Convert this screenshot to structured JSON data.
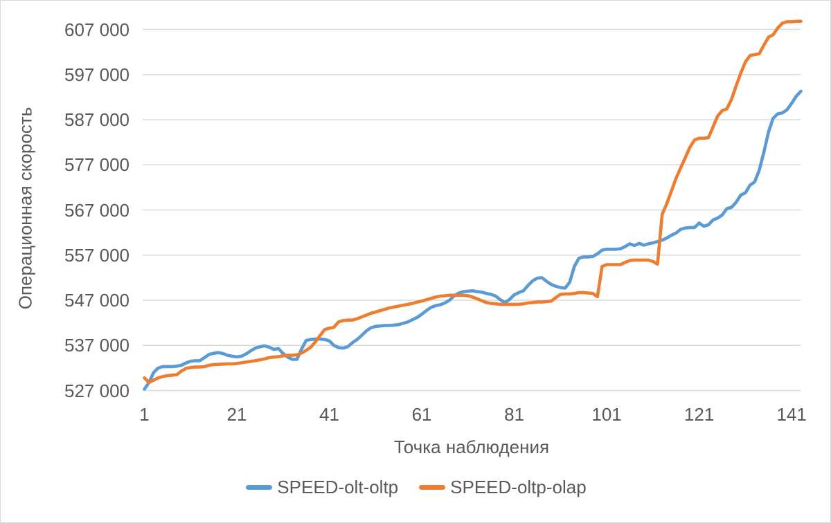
{
  "chart_data": {
    "type": "line",
    "title": "",
    "xlabel": "Точка наблюдения",
    "ylabel": "Операционная скорость",
    "grid": "horizontal",
    "legend_position": "bottom",
    "xlim": [
      1,
      143
    ],
    "ylim": [
      527000,
      607000
    ],
    "x_ticks": [
      1,
      21,
      41,
      61,
      81,
      101,
      121,
      141
    ],
    "x_tick_labels": [
      "1",
      "21",
      "41",
      "61",
      "81",
      "101",
      "121",
      "141"
    ],
    "y_ticks": [
      527000,
      537000,
      547000,
      557000,
      567000,
      577000,
      587000,
      597000,
      607000
    ],
    "y_tick_labels": [
      "527 000",
      "537 000",
      "547 000",
      "557 000",
      "567 000",
      "577 000",
      "587 000",
      "597 000",
      "607 000"
    ],
    "series": [
      {
        "name": "SPEED-olt-oltp",
        "color": "#5B9BD5",
        "values": [
          527300,
          528800,
          531000,
          532000,
          532300,
          532300,
          532300,
          532400,
          532600,
          533100,
          533500,
          533600,
          533600,
          534300,
          535000,
          535250,
          535400,
          535200,
          534800,
          534600,
          534450,
          534600,
          535100,
          535800,
          536400,
          536700,
          536900,
          536600,
          536100,
          536300,
          535200,
          534400,
          533900,
          533900,
          536200,
          538100,
          538300,
          538400,
          538400,
          538300,
          538000,
          537000,
          536500,
          536400,
          536700,
          537600,
          538300,
          539200,
          540200,
          540900,
          541200,
          541300,
          541400,
          541400,
          541500,
          541600,
          541900,
          542200,
          542700,
          543200,
          543900,
          544700,
          545400,
          545800,
          546000,
          546400,
          547000,
          548000,
          548600,
          548900,
          549000,
          549100,
          548900,
          548800,
          548500,
          548300,
          547900,
          547100,
          546500,
          547200,
          548200,
          548700,
          549100,
          550300,
          551300,
          551900,
          552000,
          551200,
          550500,
          550100,
          549800,
          549700,
          551000,
          554500,
          556300,
          556600,
          556600,
          556700,
          557300,
          558100,
          558300,
          558300,
          558300,
          558400,
          558900,
          559500,
          559100,
          559600,
          559200,
          559500,
          559700,
          560000,
          560300,
          560800,
          561400,
          561900,
          562700,
          563000,
          563100,
          563100,
          564100,
          563400,
          563700,
          564800,
          565200,
          565900,
          567300,
          567600,
          568700,
          570300,
          570800,
          572500,
          573200,
          575800,
          579800,
          584300,
          587300,
          588300,
          588500,
          589200,
          590600,
          592200,
          593300
        ]
      },
      {
        "name": "SPEED-oltp-olap",
        "color": "#ED7D31",
        "values": [
          529800,
          528800,
          529300,
          529800,
          530100,
          530300,
          530400,
          530500,
          531300,
          531900,
          532100,
          532200,
          532200,
          532300,
          532600,
          532750,
          532800,
          532850,
          532900,
          532900,
          533000,
          533150,
          533300,
          533450,
          533600,
          533800,
          534000,
          534300,
          534400,
          534500,
          534700,
          534800,
          534800,
          534900,
          535300,
          535900,
          536600,
          537800,
          539200,
          540500,
          540800,
          541000,
          542200,
          542500,
          542600,
          542600,
          542900,
          543300,
          543700,
          544100,
          544400,
          544700,
          545000,
          545300,
          545500,
          545700,
          545900,
          546100,
          546300,
          546600,
          546800,
          547100,
          547400,
          547700,
          547900,
          548000,
          548100,
          548100,
          548100,
          548100,
          548000,
          547700,
          547300,
          546900,
          546500,
          546300,
          546200,
          546100,
          546100,
          546100,
          546100,
          546100,
          546200,
          546400,
          546500,
          546600,
          546600,
          546700,
          546800,
          547600,
          548300,
          548400,
          548400,
          548500,
          548700,
          548700,
          548600,
          548500,
          547800,
          554500,
          554900,
          554900,
          554900,
          554900,
          555400,
          555800,
          555900,
          555900,
          555900,
          555900,
          555600,
          555000,
          566000,
          568400,
          571200,
          574000,
          576300,
          578600,
          580900,
          582500,
          582900,
          582900,
          583000,
          585400,
          587800,
          589000,
          589400,
          591500,
          594500,
          597300,
          599800,
          601200,
          601400,
          601600,
          603500,
          605300,
          605800,
          607300,
          608400,
          608700,
          608700,
          608800,
          608800
        ]
      }
    ],
    "colors": {
      "text": "#595959",
      "gridline": "#D9D9D9",
      "border": "#D9D9D9",
      "series1": "#5B9BD5",
      "series2": "#ED7D31"
    }
  }
}
